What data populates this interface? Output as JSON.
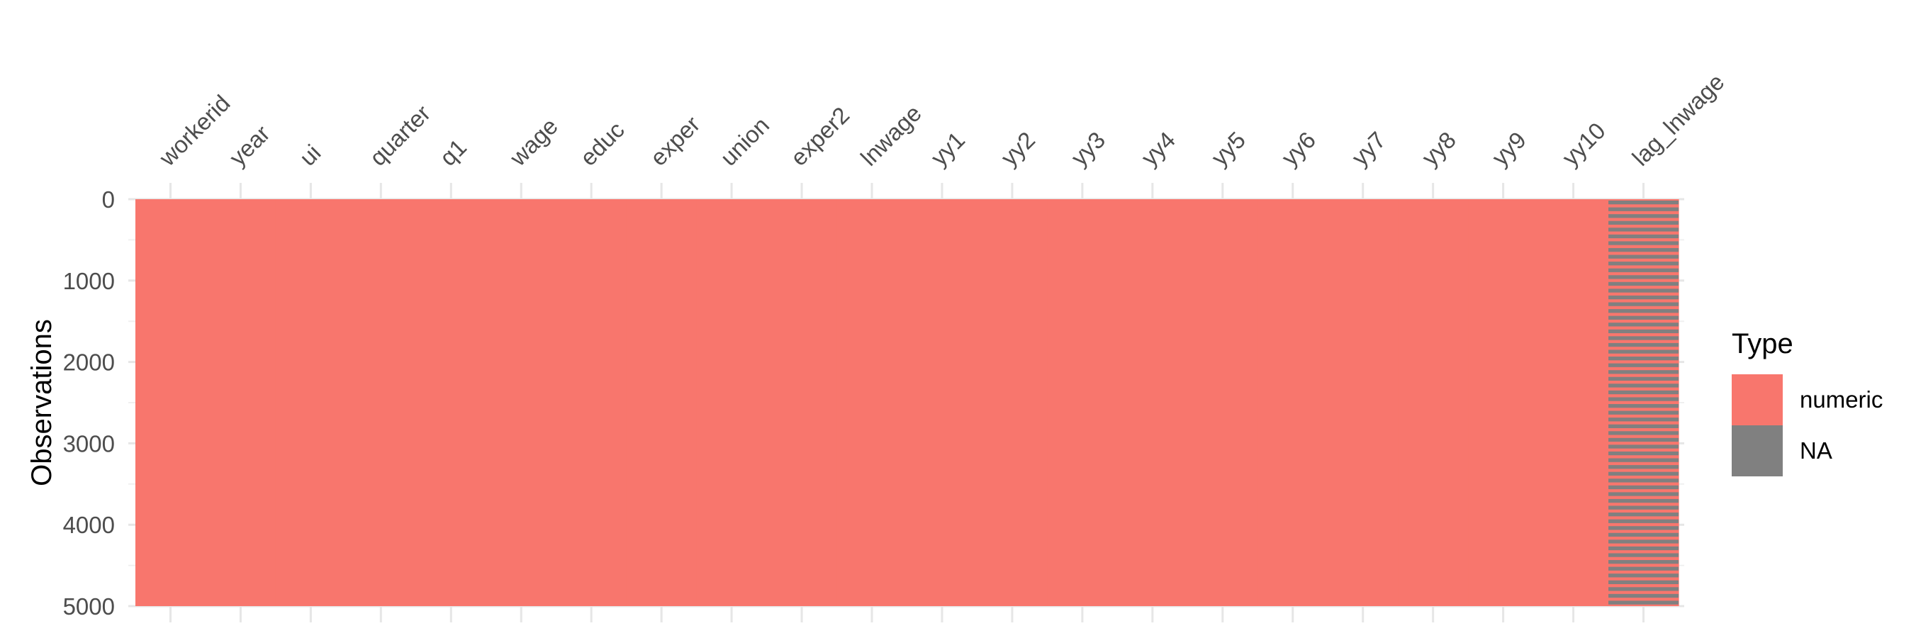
{
  "chart_data": {
    "type": "heatmap",
    "title": "",
    "xlabel": "",
    "ylabel": "Observations",
    "x_axis_position": "top",
    "columns": [
      "workerid",
      "year",
      "ui",
      "quarter",
      "q1",
      "wage",
      "educ",
      "exper",
      "union",
      "exper2",
      "lnwage",
      "yy1",
      "yy2",
      "yy3",
      "yy4",
      "yy5",
      "yy6",
      "yy7",
      "yy8",
      "yy9",
      "yy10",
      "lag_lnwage"
    ],
    "n_observations": 5000,
    "ylim": [
      0,
      5000
    ],
    "y_ticks": [
      0,
      1000,
      2000,
      3000,
      4000,
      5000
    ],
    "y_reversed": true,
    "column_types": [
      "numeric",
      "numeric",
      "numeric",
      "numeric",
      "numeric",
      "numeric",
      "numeric",
      "numeric",
      "numeric",
      "numeric",
      "numeric",
      "numeric",
      "numeric",
      "numeric",
      "numeric",
      "numeric",
      "numeric",
      "numeric",
      "numeric",
      "numeric",
      "numeric",
      "mixed"
    ],
    "na_column": "lag_lnwage",
    "na_pattern_note": "NA rows interleaved with numeric rows",
    "legend": {
      "title": "Type",
      "position": "right",
      "entries": [
        {
          "label": "numeric",
          "color": "#F8766D"
        },
        {
          "label": "NA",
          "color": "#808080"
        }
      ]
    },
    "grid": true
  }
}
